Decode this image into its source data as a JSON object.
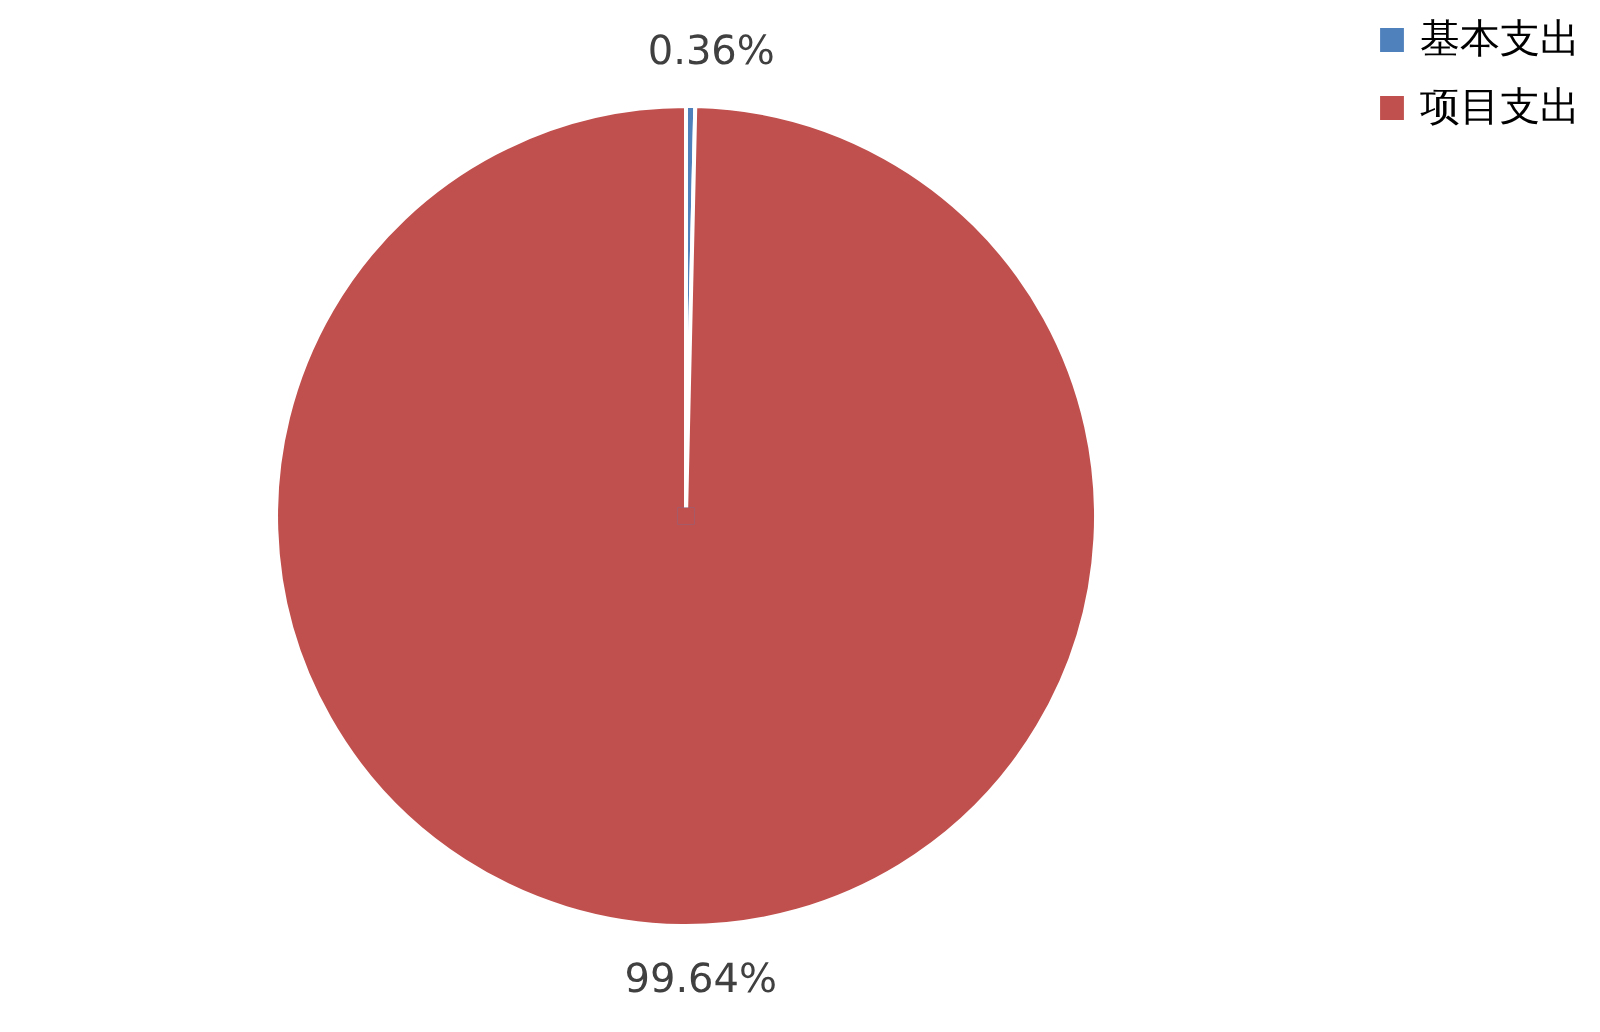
{
  "chart_data": {
    "type": "pie",
    "categories": [
      "基本支出",
      "项目支出"
    ],
    "values": [
      0.36,
      99.64
    ],
    "colors": [
      "#4f81bd",
      "#c0504d"
    ],
    "value_labels": [
      "0.36%",
      "99.64%"
    ],
    "legend": "right"
  }
}
